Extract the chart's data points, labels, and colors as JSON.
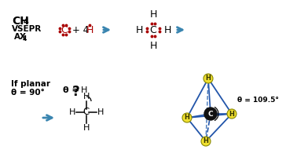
{
  "bg_color": "#ffffff",
  "arrow_color": "#3a85b0",
  "dot_color": "#aa0000",
  "line_color": "#000000",
  "blue_edge": "#2255aa",
  "H_fill": "#f0e030",
  "H_edge": "#888800",
  "C_fill": "#111111",
  "C_text": "#ffffff",
  "theta_109": "θ = 109.5°"
}
